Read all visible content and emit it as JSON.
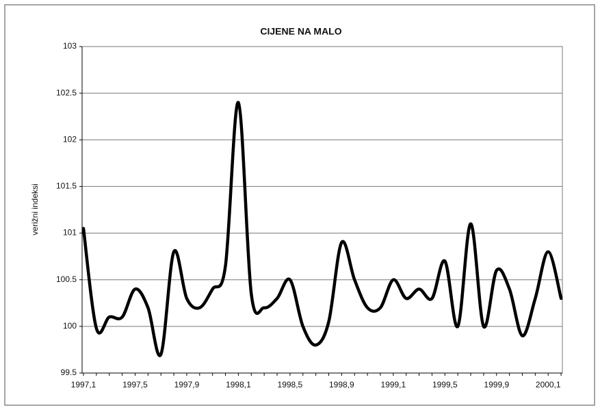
{
  "chart_data": {
    "type": "line",
    "title": "CIJENE NA MALO",
    "y_label": "verižni indeksi",
    "categories": [
      "1997,1",
      null,
      null,
      null,
      "1997,5",
      null,
      null,
      null,
      "1997,9",
      null,
      null,
      null,
      "1998,1",
      null,
      null,
      null,
      "1998,5",
      null,
      null,
      null,
      "1998,9",
      null,
      null,
      null,
      "1999,1",
      null,
      null,
      null,
      "1999,5",
      null,
      null,
      null,
      "1999,9",
      null,
      null,
      null,
      "2000,1",
      null
    ],
    "values": [
      101.05,
      99.98,
      100.1,
      100.1,
      100.4,
      100.2,
      99.7,
      100.8,
      100.3,
      100.2,
      100.4,
      100.65,
      102.4,
      100.35,
      100.2,
      100.3,
      100.5,
      100.0,
      99.8,
      100.05,
      100.9,
      100.5,
      100.2,
      100.2,
      100.5,
      100.3,
      100.4,
      100.3,
      100.7,
      100.0,
      101.1,
      100.0,
      100.6,
      100.4,
      99.9,
      100.3,
      100.8,
      100.3
    ],
    "color": "#000000",
    "ylim": [
      99.5,
      103
    ],
    "yticks": [
      99.5,
      100,
      100.5,
      101,
      101.5,
      102,
      102.5,
      103
    ],
    "grid": true
  }
}
